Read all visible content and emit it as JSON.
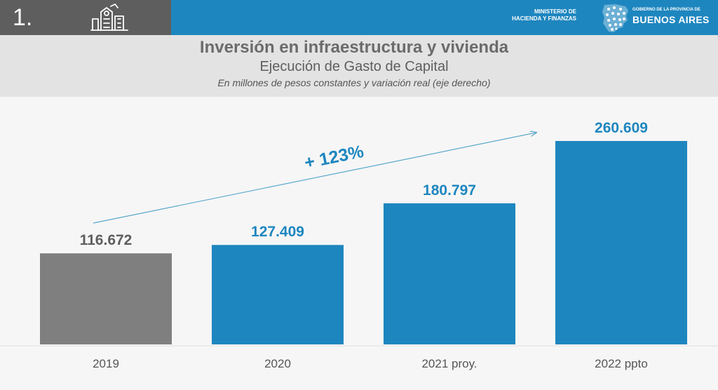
{
  "header": {
    "section_number": "1.",
    "ministry_line1": "MINISTERIO DE",
    "ministry_line2": "HACIENDA Y FINANZAS",
    "gov_line1": "GOBIERNO DE LA PROVINCIA DE",
    "gov_line2": "BUENOS AIRES"
  },
  "colors": {
    "topbar_left": "#5e5e5e",
    "topbar_right": "#1e86bf",
    "bar_base": "#7f7f80",
    "bar_accent": "#1e86bf",
    "label_base": "#5e5e5e",
    "label_accent": "#1e86bf"
  },
  "chart_data": {
    "type": "bar",
    "title": "Inversión en infraestructura y vivienda",
    "subtitle": "Ejecución de Gasto de Capital",
    "note": "En millones de pesos constantes y variación real (eje derecho)",
    "categories": [
      "2019",
      "2020",
      "2021 proy.",
      "2022 ppto"
    ],
    "values": [
      116672,
      127409,
      180797,
      260609
    ],
    "value_labels": [
      "116.672",
      "127.409",
      "180.797",
      "260.609"
    ],
    "growth_annotation": "+ 123%",
    "xlabel": "",
    "ylabel": "",
    "ylim": [
      0,
      260609
    ],
    "grid": false
  }
}
